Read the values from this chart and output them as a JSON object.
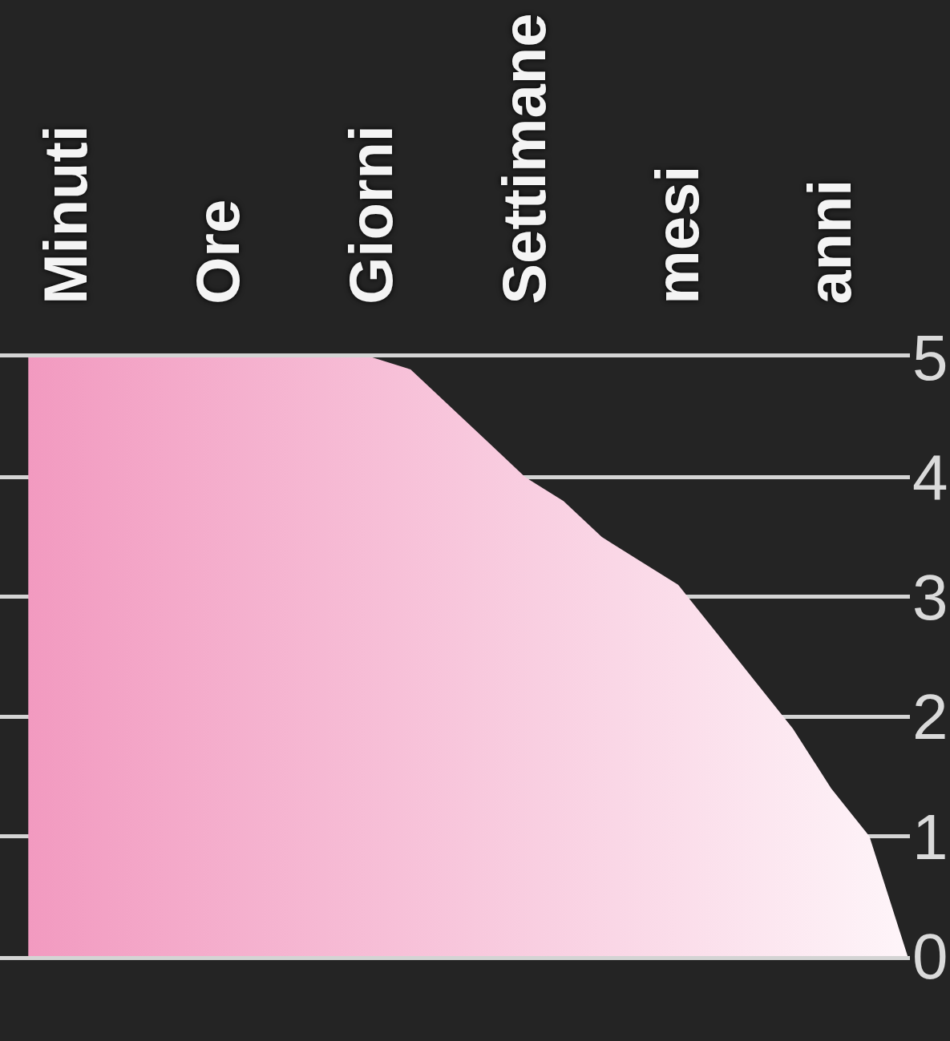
{
  "chart_data": {
    "type": "area",
    "categories": [
      null,
      "Minuti",
      null,
      null,
      null,
      "Ore",
      null,
      null,
      null,
      "Giorni",
      null,
      null,
      null,
      "Settimane",
      null,
      null,
      null,
      "mesi",
      null,
      null,
      null,
      "anni",
      null,
      null
    ],
    "values": [
      5,
      5,
      5,
      5,
      5,
      5,
      5,
      5,
      5,
      5,
      4.9,
      4.6,
      4.3,
      4.0,
      3.8,
      3.5,
      3.3,
      3.1,
      2.7,
      2.3,
      1.9,
      1.4,
      1.0,
      0
    ],
    "color": "#f29ac0",
    "ylim": [
      0,
      5
    ],
    "yticks": [
      0,
      1,
      2,
      3,
      4,
      5
    ],
    "grid": "y"
  }
}
